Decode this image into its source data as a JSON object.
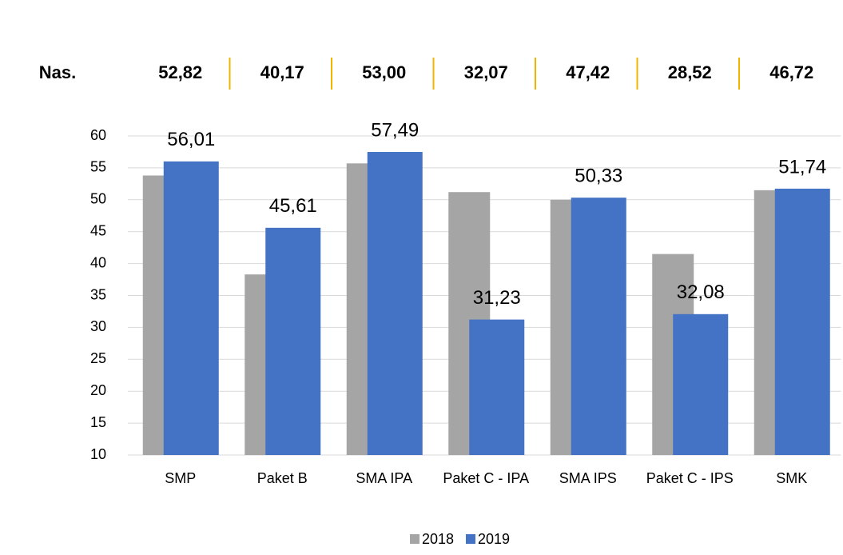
{
  "chart_data": {
    "type": "bar",
    "national": {
      "label": "Nas.",
      "values": [
        "52,82",
        "40,17",
        "53,00",
        "32,07",
        "47,42",
        "28,52",
        "46,72"
      ]
    },
    "categories": [
      "SMP",
      "Paket B",
      "SMA IPA",
      "Paket C - IPA",
      "SMA IPS",
      "Paket C - IPS",
      "SMK"
    ],
    "series": [
      {
        "name": "2018",
        "color": "#a5a5a5",
        "values": [
          53.8,
          38.3,
          55.7,
          51.2,
          50.0,
          41.5,
          51.5
        ]
      },
      {
        "name": "2019",
        "color": "#4472c4",
        "values": [
          56.01,
          45.61,
          57.49,
          31.23,
          50.33,
          32.08,
          51.74
        ],
        "value_labels": [
          "56,01",
          "45,61",
          "57,49",
          "31,23",
          "50,33",
          "32,08",
          "51,74"
        ]
      }
    ],
    "ylim": [
      10,
      60
    ],
    "yticks": [
      10,
      15,
      20,
      25,
      30,
      35,
      40,
      45,
      50,
      55,
      60
    ],
    "grid": true,
    "legend": "bottom"
  }
}
